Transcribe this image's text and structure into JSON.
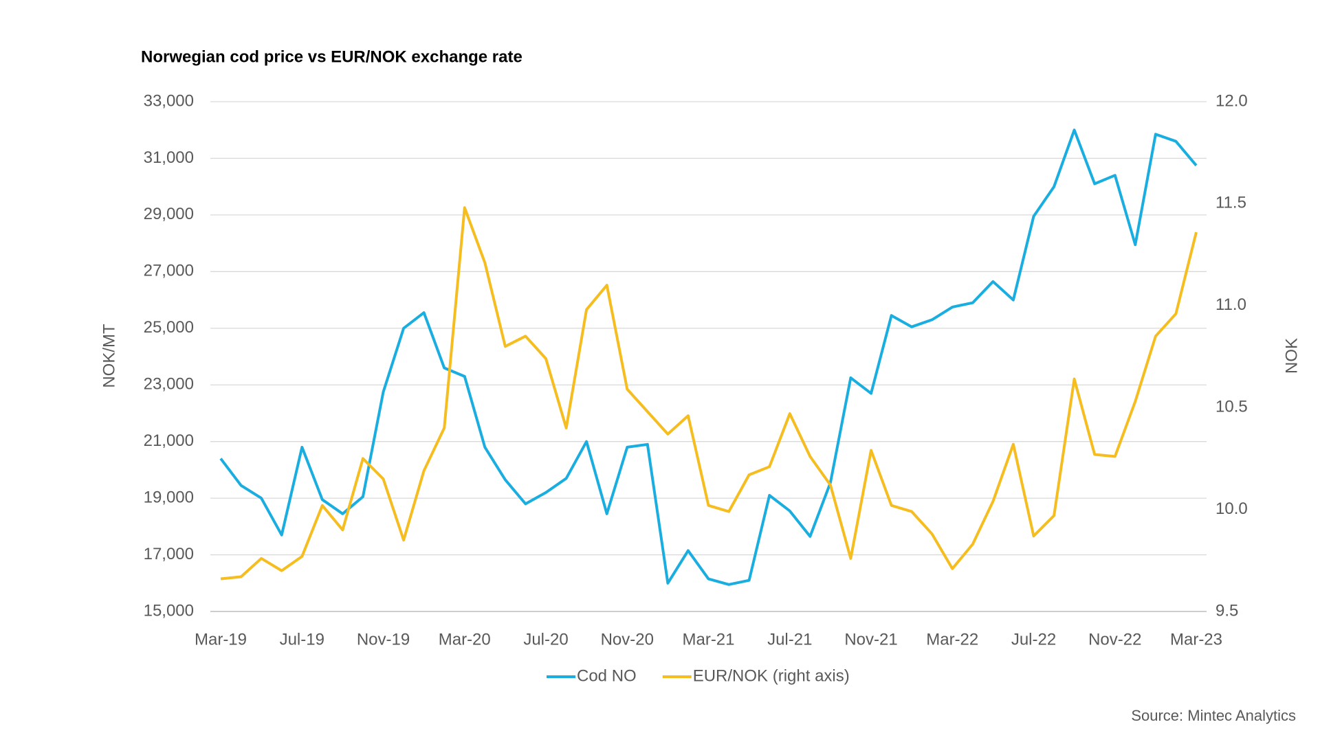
{
  "chart_data": {
    "type": "line",
    "title": "Norwegian cod price vs EUR/NOK exchange rate",
    "y_label": "NOK/MT",
    "y2_label": "NOK",
    "source": "Source: Mintec Analytics",
    "categories": [
      "Mar-19",
      null,
      null,
      null,
      "Jul-19",
      null,
      null,
      null,
      "Nov-19",
      null,
      null,
      null,
      "Mar-20",
      null,
      null,
      null,
      "Jul-20",
      null,
      null,
      null,
      "Nov-20",
      null,
      null,
      null,
      "Mar-21",
      null,
      null,
      null,
      "Jul-21",
      null,
      null,
      null,
      "Nov-21",
      null,
      null,
      null,
      "Mar-22",
      null,
      null,
      null,
      "Jul-22",
      null,
      null,
      null,
      "Nov-22",
      null,
      null,
      null,
      "Mar-23"
    ],
    "series": [
      {
        "name": "Cod NO",
        "color": "#1aaee0",
        "values": [
          20400,
          19450,
          19000,
          17700,
          20800,
          18950,
          18450,
          19050,
          22750,
          25000,
          25550,
          23600,
          23300,
          20800,
          19650,
          18800,
          19200,
          19700,
          21000,
          18450,
          20800,
          20900,
          16000,
          17150,
          16150,
          15950,
          16100,
          19100,
          18550,
          17650,
          19550,
          23250,
          22700,
          25450,
          25050,
          25300,
          25750,
          25900,
          26650,
          26000,
          28950,
          30000,
          32000,
          30100,
          30400,
          27950,
          31850,
          31600,
          30750
        ]
      },
      {
        "name": "EUR/NOK (right axis)",
        "color": "#f5bd1f",
        "axis": "y2",
        "values": [
          9.66,
          9.67,
          9.76,
          9.7,
          9.77,
          10.02,
          9.9,
          10.25,
          10.15,
          9.85,
          10.19,
          10.4,
          11.48,
          11.21,
          10.8,
          10.85,
          10.74,
          10.4,
          10.98,
          11.1,
          10.59,
          10.48,
          10.37,
          10.46,
          10.02,
          9.99,
          10.17,
          10.21,
          10.47,
          10.26,
          10.12,
          9.76,
          10.29,
          10.02,
          9.99,
          9.88,
          9.71,
          9.83,
          10.04,
          10.32,
          9.87,
          9.97,
          10.64,
          10.27,
          10.26,
          10.53,
          10.85,
          10.96,
          11.36
        ]
      }
    ],
    "ylim": [
      15000,
      33000
    ],
    "yticks": [
      {
        "value": 15000,
        "label": "15,000"
      },
      {
        "value": 17000,
        "label": "17,000"
      },
      {
        "value": 19000,
        "label": "19,000"
      },
      {
        "value": 21000,
        "label": "21,000"
      },
      {
        "value": 23000,
        "label": "23,000"
      },
      {
        "value": 25000,
        "label": "25,000"
      },
      {
        "value": 27000,
        "label": "27,000"
      },
      {
        "value": 29000,
        "label": "29,000"
      },
      {
        "value": 31000,
        "label": "31,000"
      },
      {
        "value": 33000,
        "label": "33,000"
      }
    ],
    "y2lim": [
      9.5,
      12
    ],
    "y2ticks": [
      9.5,
      {
        "value": 10,
        "label": "10.0"
      },
      10.5,
      {
        "value": 11,
        "label": "11.0"
      },
      11.5,
      {
        "value": 12,
        "label": "12.0"
      }
    ],
    "grid": true,
    "legend": "bottom"
  }
}
